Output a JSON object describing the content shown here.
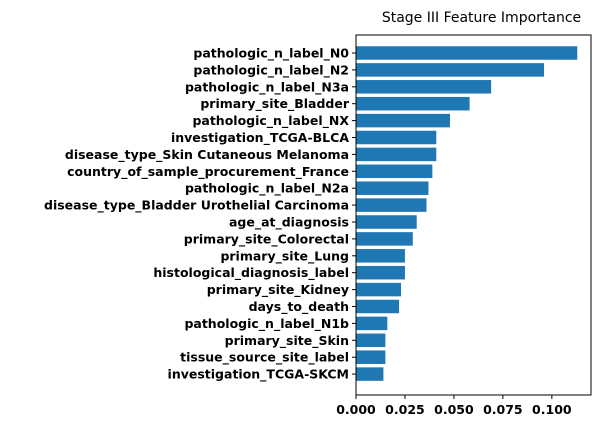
{
  "chart_data": {
    "type": "bar",
    "orientation": "horizontal",
    "title": "Stage III Feature Importance",
    "xlabel": "",
    "ylabel": "",
    "xlim": [
      0,
      0.12
    ],
    "x_ticks": [
      0.0,
      0.025,
      0.05,
      0.075,
      0.1
    ],
    "x_tick_labels": [
      "0.000",
      "0.025",
      "0.050",
      "0.075",
      "0.100"
    ],
    "bar_color": "#1f77b4",
    "grid": false,
    "categories": [
      "pathologic_n_label_N0",
      "pathologic_n_label_N2",
      "pathologic_n_label_N3a",
      "primary_site_Bladder",
      "pathologic_n_label_NX",
      "investigation_TCGA-BLCA",
      "disease_type_Skin Cutaneous Melanoma",
      "country_of_sample_procurement_France",
      "pathologic_n_label_N2a",
      "disease_type_Bladder Urothelial Carcinoma",
      "age_at_diagnosis",
      "primary_site_Colorectal",
      "primary_site_Lung",
      "histological_diagnosis_label",
      "primary_site_Kidney",
      "days_to_death",
      "pathologic_n_label_N1b",
      "primary_site_Skin",
      "tissue_source_site_label",
      "investigation_TCGA-SKCM"
    ],
    "values": [
      0.113,
      0.096,
      0.069,
      0.058,
      0.048,
      0.041,
      0.041,
      0.039,
      0.037,
      0.036,
      0.031,
      0.029,
      0.025,
      0.025,
      0.023,
      0.022,
      0.016,
      0.015,
      0.015,
      0.014
    ]
  }
}
